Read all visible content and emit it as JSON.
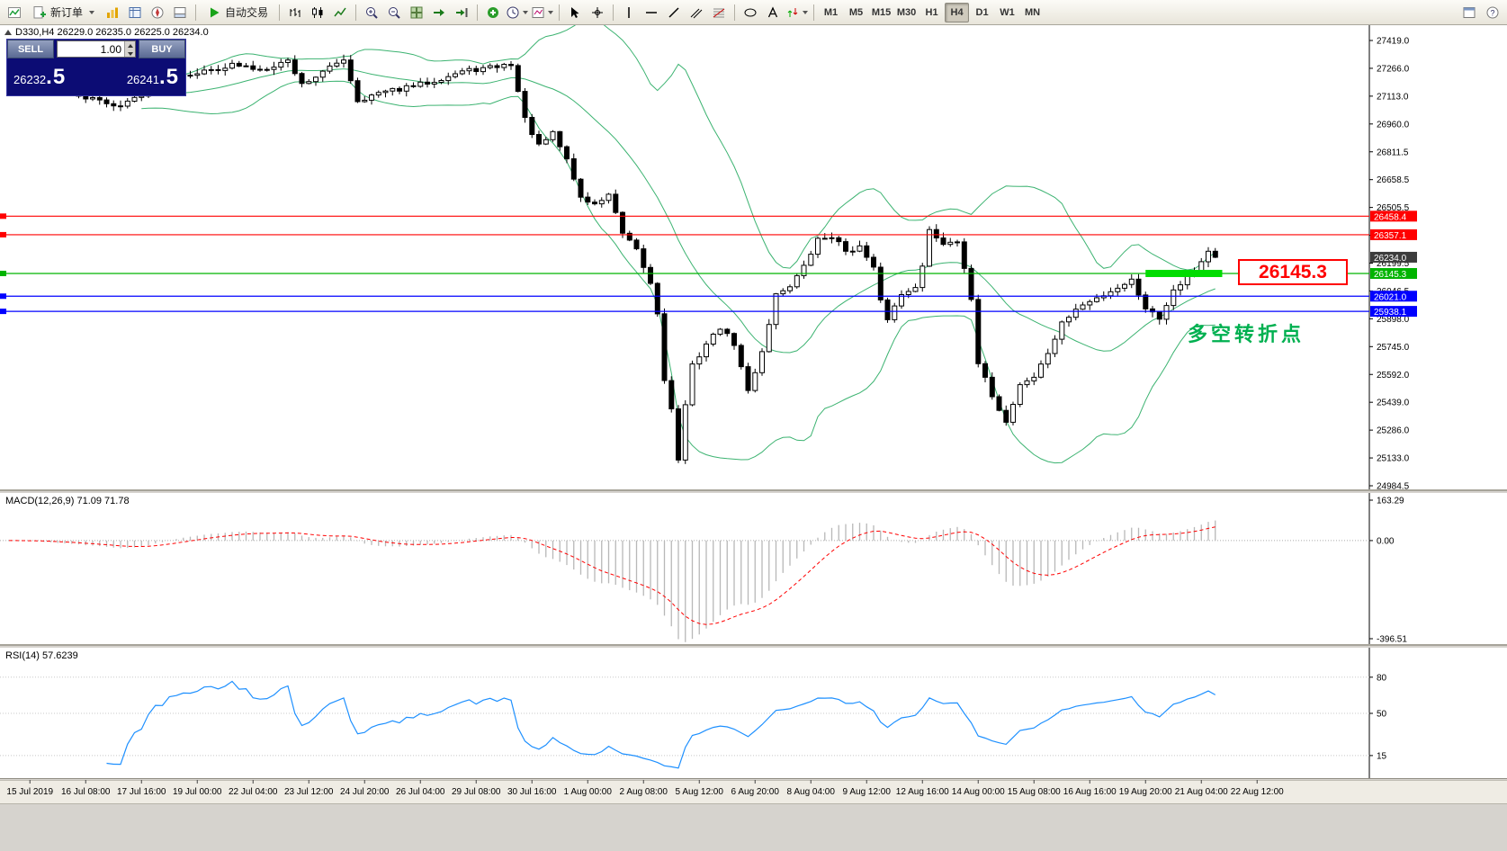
{
  "toolbar": {
    "new_order_label": "新订单",
    "auto_trading_label": "自动交易",
    "timeframes": [
      "M1",
      "M5",
      "M15",
      "M30",
      "H1",
      "H4",
      "D1",
      "W1",
      "MN"
    ],
    "active_timeframe": "H4",
    "icons": [
      "new-chart-icon",
      "new-order-icon",
      "profiles-icon",
      "market-watch-icon",
      "navigator-icon",
      "terminal-icon",
      "auto-trading-play-icon",
      "bar-chart-icon",
      "candlestick-chart-icon",
      "line-chart-icon",
      "zoom-in-icon",
      "zoom-out-icon",
      "tile-windows-icon",
      "indicators-icon",
      "periods-icon",
      "templates-icon",
      "cursor-icon",
      "crosshair-icon",
      "vertical-line-icon",
      "horizontal-line-icon",
      "trendline-icon",
      "channel-icon",
      "fibonacci-icon",
      "shapes-icon",
      "text-label-icon",
      "arrow-objects-icon",
      "fullscreen-icon",
      "help-icon"
    ]
  },
  "trade_panel": {
    "sell_label": "SELL",
    "buy_label": "BUY",
    "volume": "1.00",
    "sell_price_main": "26232",
    "sell_price_pips": ".5",
    "buy_price_main": "26241",
    "buy_price_pips": ".5"
  },
  "chart": {
    "symbol_ohlc": "D330,H4 26229.0 26235.0 26225.0 26234.0",
    "annotation": "多空转折点",
    "annotation_color": "#00b050",
    "big_label": "26145.3",
    "big_label_color": "#ff0000"
  },
  "macd_label": "MACD(12,26,9) 71.09 71.78",
  "rsi_label": "RSI(14) 57.6239",
  "chart_data": {
    "type": "candlestick",
    "title": "D330,H4",
    "quote": {
      "open": 26229.0,
      "high": 26235.0,
      "low": 26225.0,
      "close": 26234.0
    },
    "bars": 174,
    "last_close": 26234.0,
    "price_waypoints": [
      [
        0,
        27190
      ],
      [
        5,
        27160
      ],
      [
        10,
        27115
      ],
      [
        16,
        27060
      ],
      [
        20,
        27150
      ],
      [
        24,
        27230
      ],
      [
        28,
        27250
      ],
      [
        32,
        27285
      ],
      [
        36,
        27260
      ],
      [
        40,
        27310
      ],
      [
        42,
        27180
      ],
      [
        45,
        27245
      ],
      [
        48,
        27320
      ],
      [
        50,
        27090
      ],
      [
        53,
        27130
      ],
      [
        57,
        27160
      ],
      [
        61,
        27200
      ],
      [
        65,
        27250
      ],
      [
        69,
        27270
      ],
      [
        72,
        27290
      ],
      [
        74,
        26990
      ],
      [
        76,
        26840
      ],
      [
        78,
        26910
      ],
      [
        80,
        26770
      ],
      [
        82,
        26560
      ],
      [
        84,
        26520
      ],
      [
        86,
        26580
      ],
      [
        88,
        26360
      ],
      [
        90,
        26270
      ],
      [
        92,
        26090
      ],
      [
        93,
        25930
      ],
      [
        94,
        25570
      ],
      [
        95,
        25400
      ],
      [
        96,
        25130
      ],
      [
        97,
        25420
      ],
      [
        98,
        25640
      ],
      [
        100,
        25760
      ],
      [
        102,
        25850
      ],
      [
        104,
        25760
      ],
      [
        106,
        25500
      ],
      [
        108,
        25720
      ],
      [
        110,
        26030
      ],
      [
        112,
        26080
      ],
      [
        114,
        26180
      ],
      [
        116,
        26330
      ],
      [
        118,
        26350
      ],
      [
        120,
        26270
      ],
      [
        122,
        26290
      ],
      [
        124,
        26170
      ],
      [
        125,
        25990
      ],
      [
        126,
        25900
      ],
      [
        128,
        26030
      ],
      [
        130,
        26080
      ],
      [
        131,
        26180
      ],
      [
        132,
        26380
      ],
      [
        134,
        26310
      ],
      [
        136,
        26330
      ],
      [
        137,
        26180
      ],
      [
        138,
        25990
      ],
      [
        139,
        25650
      ],
      [
        141,
        25480
      ],
      [
        143,
        25330
      ],
      [
        145,
        25540
      ],
      [
        147,
        25580
      ],
      [
        149,
        25710
      ],
      [
        151,
        25870
      ],
      [
        153,
        25950
      ],
      [
        155,
        25990
      ],
      [
        157,
        26030
      ],
      [
        159,
        26070
      ],
      [
        161,
        26110
      ],
      [
        163,
        25960
      ],
      [
        165,
        25900
      ],
      [
        167,
        26060
      ],
      [
        169,
        26130
      ],
      [
        171,
        26210
      ],
      [
        172,
        26270
      ],
      [
        173,
        26234
      ]
    ],
    "y_ticks": [
      27419.0,
      27266.0,
      27113.0,
      26960.0,
      26811.5,
      26658.5,
      26505.5,
      26352.5,
      26199.5,
      26046.5,
      25898.0,
      25745.0,
      25592.0,
      25439.0,
      25286.0,
      25133.0,
      24984.5
    ],
    "x_ticks": [
      "15 Jul 2019",
      "16 Jul 08:00",
      "17 Jul 16:00",
      "19 Jul 00:00",
      "22 Jul 04:00",
      "23 Jul 12:00",
      "24 Jul 20:00",
      "26 Jul 04:00",
      "29 Jul 08:00",
      "30 Jul 16:00",
      "1 Aug 00:00",
      "2 Aug 08:00",
      "5 Aug 12:00",
      "6 Aug 20:00",
      "8 Aug 04:00",
      "9 Aug 12:00",
      "12 Aug 16:00",
      "14 Aug 00:00",
      "15 Aug 08:00",
      "16 Aug 16:00",
      "19 Aug 20:00",
      "21 Aug 04:00",
      "22 Aug 12:00"
    ],
    "x_tick_first_bar": 3,
    "x_tick_step_bars": 8,
    "levels": [
      {
        "price": 26458.4,
        "label": "26458.4",
        "color": "#ff0000"
      },
      {
        "price": 26357.1,
        "label": "26357.1",
        "color": "#ff0000"
      },
      {
        "price": 26145.3,
        "label": "26145.3",
        "color": "#00b400"
      },
      {
        "price": 26021.0,
        "label": "26021.0",
        "color": "#0000ff"
      },
      {
        "price": 25938.1,
        "label": "25938.1",
        "color": "#0000ff"
      }
    ],
    "current_price": {
      "value": 26234.0,
      "label": "26234.0",
      "badge_color": "#3c3c3c"
    },
    "highlight_bar": {
      "price": 26145.3,
      "from_bar": 163,
      "to_bar": 174,
      "color": "#00dc00"
    },
    "bollinger": {
      "period": 20,
      "deviation": 2,
      "color": "#3cb371"
    },
    "candle_colors": {
      "up_fill": "#ffffff",
      "down_fill": "#000000",
      "outline": "#000000"
    },
    "macd": {
      "fast": 12,
      "slow": 26,
      "signal": 9,
      "current": "71.09",
      "current_signal": "71.78",
      "y_ticks": [
        "163.29",
        "0.00",
        "-396.51"
      ],
      "range": [
        -396.51,
        163.29
      ],
      "histogram_color": "#b8b8b8",
      "signal_color": "#ff0000"
    },
    "rsi": {
      "period": 14,
      "current": "57.6239",
      "y_ticks": [
        80,
        50,
        15
      ],
      "color": "#1e90ff"
    }
  }
}
